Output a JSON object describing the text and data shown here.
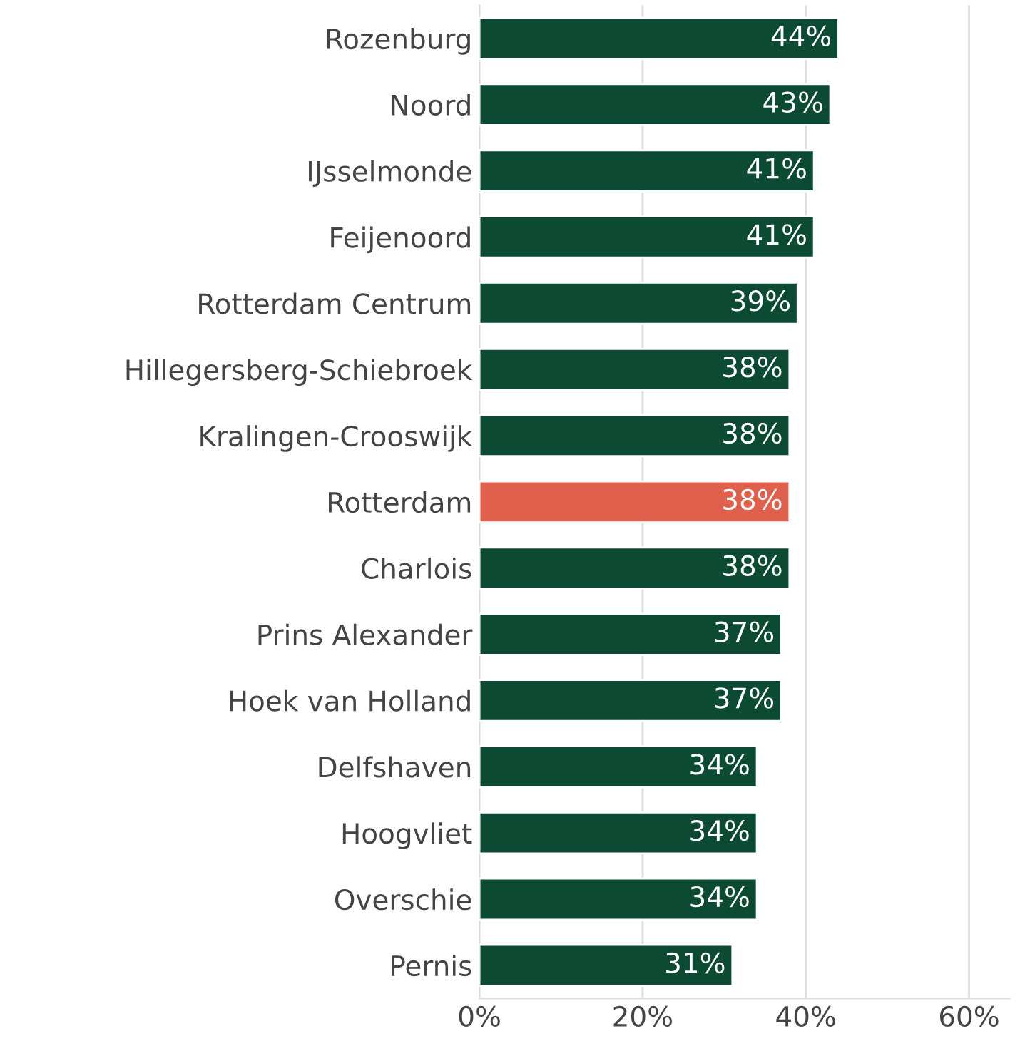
{
  "chart_data": {
    "type": "bar",
    "orientation": "horizontal",
    "categories": [
      "Rozenburg",
      "Noord",
      "IJsselmonde",
      "Feijenoord",
      "Rotterdam Centrum",
      "Hillegersberg-Schiebroek",
      "Kralingen-Crooswijk",
      "Rotterdam",
      "Charlois",
      "Prins Alexander",
      "Hoek van Holland",
      "Delfshaven",
      "Hoogvliet",
      "Overschie",
      "Pernis"
    ],
    "values": [
      44,
      43,
      41,
      41,
      39,
      38,
      38,
      38,
      38,
      37,
      37,
      34,
      34,
      34,
      31
    ],
    "value_labels": [
      "44%",
      "43%",
      "41%",
      "41%",
      "39%",
      "38%",
      "38%",
      "38%",
      "38%",
      "37%",
      "37%",
      "34%",
      "34%",
      "34%",
      "31%"
    ],
    "colors": [
      "#0d4a33",
      "#0d4a33",
      "#0d4a33",
      "#0d4a33",
      "#0d4a33",
      "#0d4a33",
      "#0d4a33",
      "#e0604e",
      "#0d4a33",
      "#0d4a33",
      "#0d4a33",
      "#0d4a33",
      "#0d4a33",
      "#0d4a33",
      "#0d4a33"
    ],
    "xlim": [
      0,
      65
    ],
    "xticks": [
      {
        "value": 0,
        "label": "0%"
      },
      {
        "value": 20,
        "label": "20%"
      },
      {
        "value": 40,
        "label": "40%"
      },
      {
        "value": 60,
        "label": "60%"
      }
    ],
    "grid": "x",
    "legend": false
  }
}
